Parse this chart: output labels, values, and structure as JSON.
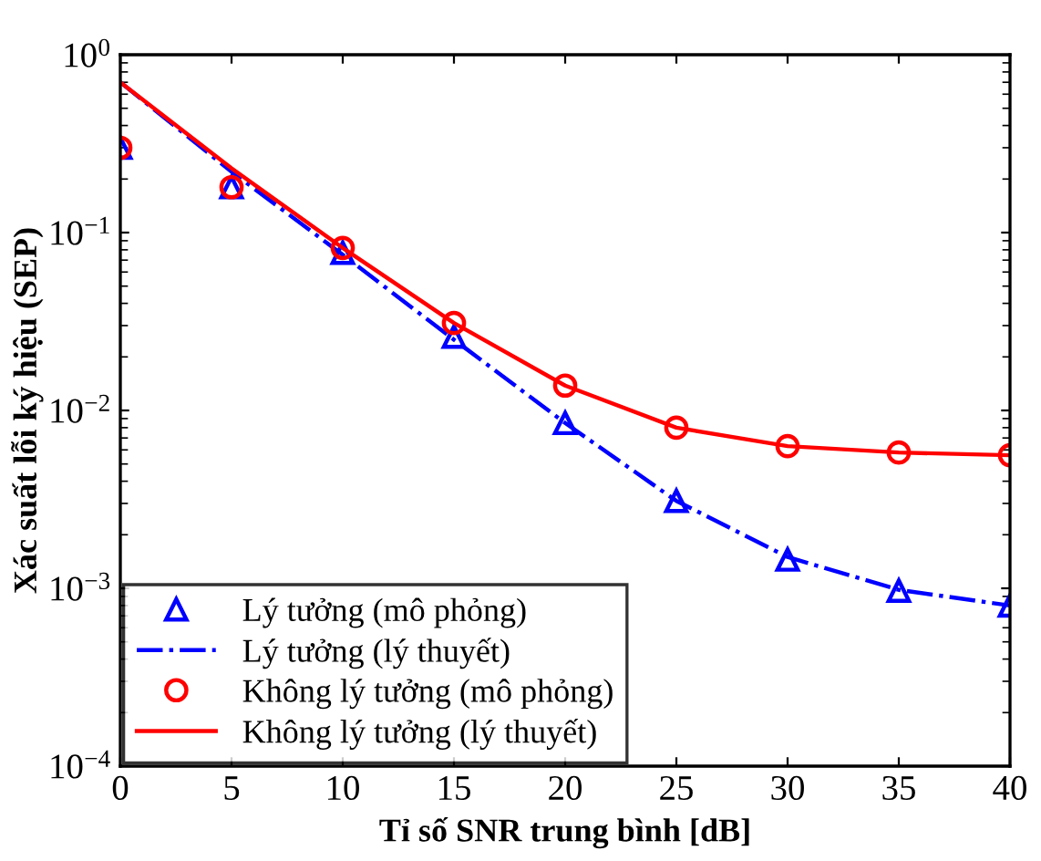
{
  "chart_data": {
    "type": "line",
    "xlabel": "Tỉ số SNR trung bình [dB]",
    "ylabel": "Xác suất lỗi ký hiệu (SEP)",
    "log": "y",
    "grid": false,
    "legend": "bottom left",
    "xlim": [
      0,
      40
    ],
    "xticks": [
      0,
      5,
      10,
      15,
      20,
      25,
      30,
      35,
      40
    ],
    "ylim": [
      0.0001,
      1
    ],
    "yticks": [
      {
        "value": 0.0001,
        "label": "10$^{−4}$"
      },
      {
        "value": 0.001,
        "label": "10$^{−3}$"
      },
      {
        "value": 0.01,
        "label": "10$^{−2}$"
      },
      {
        "value": 0.1,
        "label": "10$^{−1}$"
      },
      {
        "value": 1,
        "label": "10$^{0}$"
      }
    ],
    "series": [
      {
        "name": "Lý tưởng (mô phỏng)",
        "type": "scatter",
        "marker": "triangle",
        "color": "#0000ff",
        "x": [
          0,
          5,
          10,
          15,
          20,
          25,
          30,
          35,
          40
        ],
        "values": [
          0.3,
          0.18,
          0.077,
          0.026,
          0.0085,
          0.0031,
          0.00145,
          0.00097,
          0.0008
        ]
      },
      {
        "name": "Lý tưởng (lý thuyết)",
        "line_style": "dashdot",
        "color": "#0000ff",
        "x": [
          0,
          5,
          10,
          15,
          20,
          25,
          30,
          35,
          40
        ],
        "values": [
          0.7,
          0.22,
          0.075,
          0.025,
          0.0085,
          0.0031,
          0.0015,
          0.00098,
          0.0008
        ]
      },
      {
        "name": "Không lý tưởng (mô phỏng)",
        "type": "scatter",
        "marker": "circle",
        "color": "#ff0000",
        "x": [
          0,
          5,
          10,
          15,
          20,
          25,
          30,
          35,
          40
        ],
        "values": [
          0.3,
          0.18,
          0.082,
          0.031,
          0.0138,
          0.008,
          0.0063,
          0.0058,
          0.0056
        ]
      },
      {
        "name": "Không lý tưởng (lý thuyết)",
        "line_style": "solid",
        "color": "#ff0000",
        "x": [
          0,
          5,
          10,
          15,
          20,
          25,
          30,
          35,
          40
        ],
        "values": [
          0.7,
          0.23,
          0.082,
          0.031,
          0.0138,
          0.008,
          0.0063,
          0.0058,
          0.0056
        ]
      }
    ]
  }
}
